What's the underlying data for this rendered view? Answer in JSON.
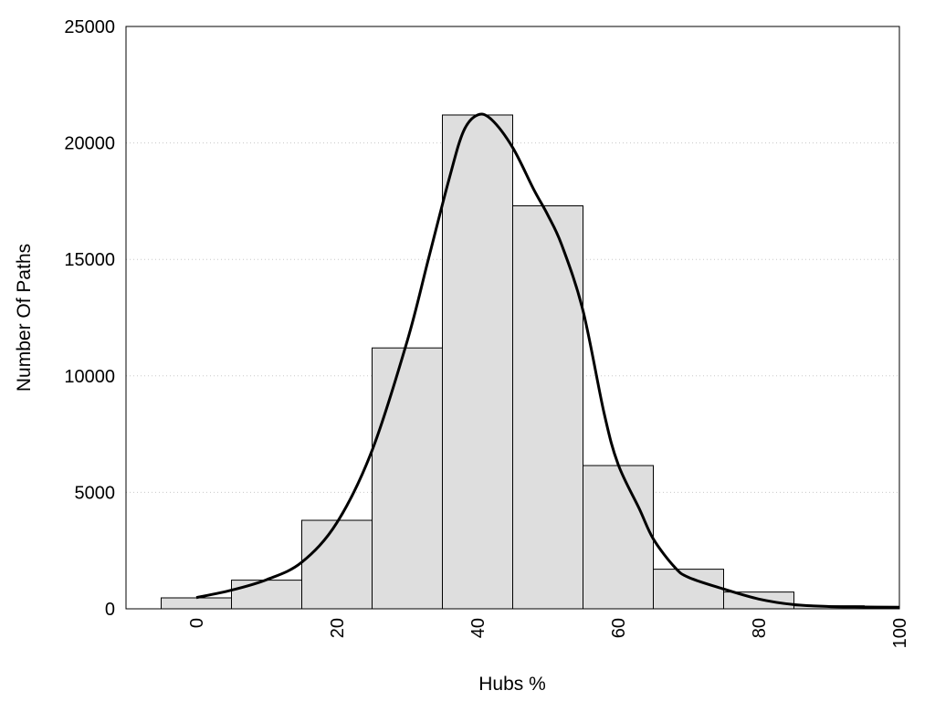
{
  "chart_data": {
    "type": "bar",
    "xlabel": "Hubs %",
    "ylabel": "Number Of Paths",
    "xlim": [
      -10,
      100
    ],
    "ylim": [
      0,
      25000
    ],
    "x_ticks": [
      0,
      20,
      40,
      60,
      80,
      100
    ],
    "y_ticks": [
      0,
      5000,
      10000,
      15000,
      20000,
      25000
    ],
    "bin_width": 10,
    "bins": [
      {
        "center": 0,
        "value": 470
      },
      {
        "center": 10,
        "value": 1230
      },
      {
        "center": 20,
        "value": 3800
      },
      {
        "center": 30,
        "value": 11200
      },
      {
        "center": 40,
        "value": 21200
      },
      {
        "center": 50,
        "value": 17300
      },
      {
        "center": 60,
        "value": 6150
      },
      {
        "center": 70,
        "value": 1700
      },
      {
        "center": 80,
        "value": 720
      },
      {
        "center": 90,
        "value": 130
      }
    ],
    "density_curve": {
      "x": [
        0,
        5,
        10,
        15,
        20,
        25,
        30,
        33,
        36,
        38,
        40,
        42,
        45,
        48,
        50,
        52,
        55,
        58,
        60,
        63,
        65,
        68,
        70,
        75,
        80,
        85,
        90,
        95,
        100
      ],
      "y": [
        480,
        800,
        1250,
        2000,
        3700,
        6800,
        11500,
        15000,
        18500,
        20500,
        21200,
        21000,
        19800,
        18000,
        16900,
        15600,
        12800,
        8400,
        6200,
        4300,
        3000,
        1800,
        1350,
        850,
        420,
        180,
        100,
        80,
        70
      ]
    },
    "grid": "horizontal-dotted",
    "legend": "none"
  }
}
